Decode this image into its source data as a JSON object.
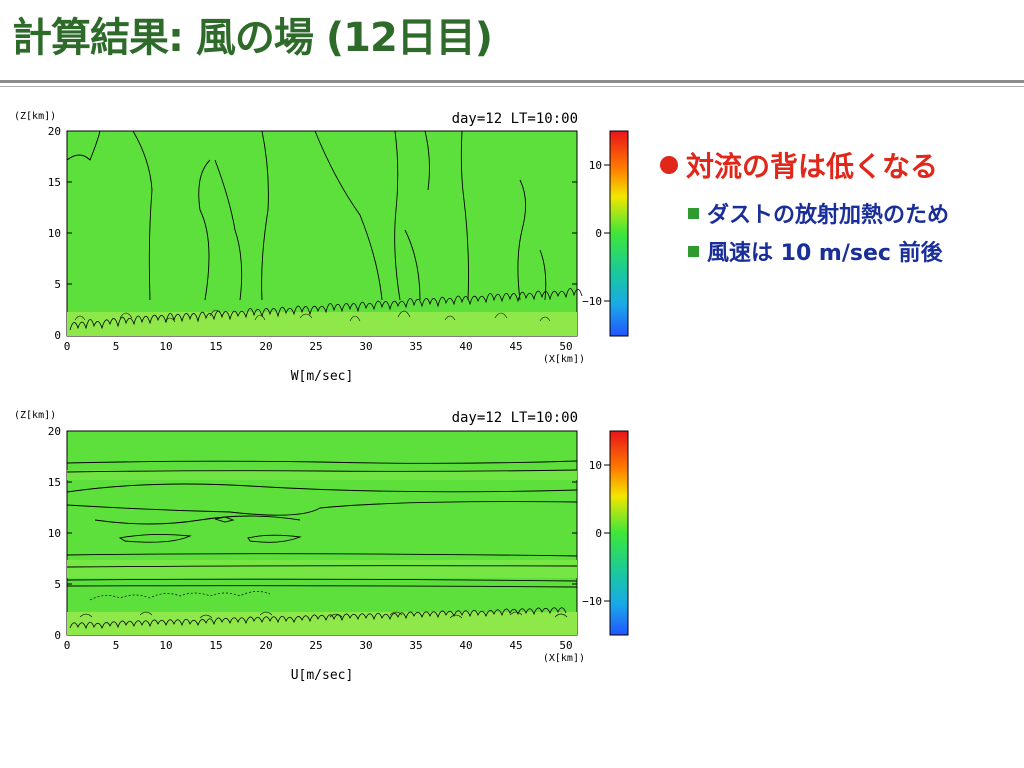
{
  "slide": {
    "title": "計算結果: 風の場 (12日目)"
  },
  "bullets": {
    "main": "対流の背は低くなる",
    "subs": [
      "ダストの放射加熱のため",
      "風速は 10 m/sec 前後"
    ]
  },
  "colors": {
    "title": "#2e6b2a",
    "bullet_main": "#e0271a",
    "bullet_sub": "#1a2e9a",
    "sub_marker": "#2f9a2f",
    "field_base": "#5ee03c"
  },
  "chart_data": [
    {
      "type": "heatmap",
      "variable_label": "W[m/sec]",
      "time_label": "day=12 LT=10:00",
      "ylabel": "(Z[km])",
      "xlabel": "(X[km])",
      "xlim": [
        0,
        52
      ],
      "ylim": [
        0,
        20
      ],
      "xticks": [
        0,
        5,
        10,
        15,
        20,
        25,
        30,
        35,
        40,
        45,
        50
      ],
      "yticks": [
        0,
        5,
        10,
        15,
        20
      ],
      "colorbar": {
        "range": [
          -15,
          15
        ],
        "ticks": [
          10,
          0,
          -10
        ]
      },
      "description_contours": "vertical convective plumes extending to ~20 km; turbulent small cells below 2 km"
    },
    {
      "type": "heatmap",
      "variable_label": "U[m/sec]",
      "time_label": "day=12 LT=10:00",
      "ylabel": "(Z[km])",
      "xlabel": "(X[km])",
      "xlim": [
        0,
        52
      ],
      "ylim": [
        0,
        20
      ],
      "xticks": [
        0,
        5,
        10,
        15,
        20,
        25,
        30,
        35,
        40,
        45,
        50
      ],
      "yticks": [
        0,
        5,
        10,
        15,
        20
      ],
      "colorbar": {
        "range": [
          -15,
          15
        ],
        "ticks": [
          10,
          0,
          -10
        ]
      },
      "description_contours": "horizontally layered wind bands; turbulent cells below 2 km"
    }
  ]
}
